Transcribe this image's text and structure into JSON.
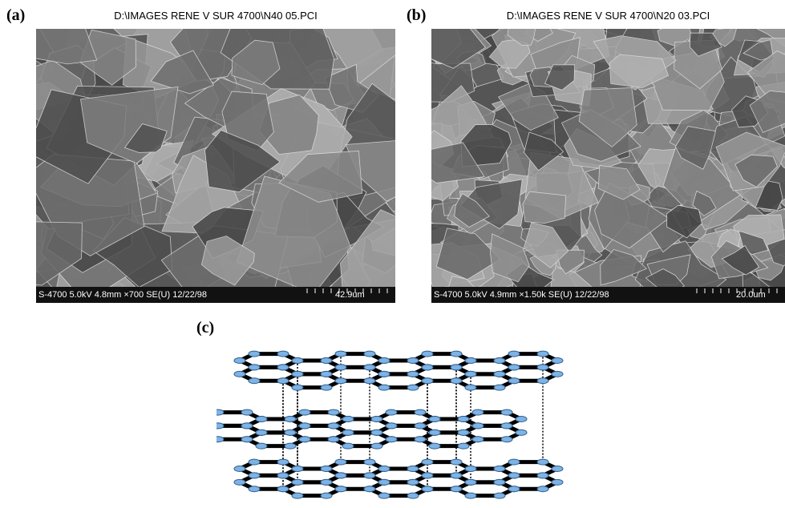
{
  "panels": [
    {
      "label": "(a)",
      "title": "D:\\IMAGES RENE V SUR 4700\\N40 05.PCI",
      "info": "S-4700 5.0kV 4.8mm ×700 SE(U) 12/22/98",
      "scale": "42.9um"
    },
    {
      "label": "(b)",
      "title": "D:\\IMAGES RENE V SUR 4700\\N20 03.PCI",
      "info": "S-4700 5.0kV 4.9mm ×1.50k SE(U) 12/22/98",
      "scale": "20.0um"
    },
    {
      "label": "(c)"
    }
  ]
}
